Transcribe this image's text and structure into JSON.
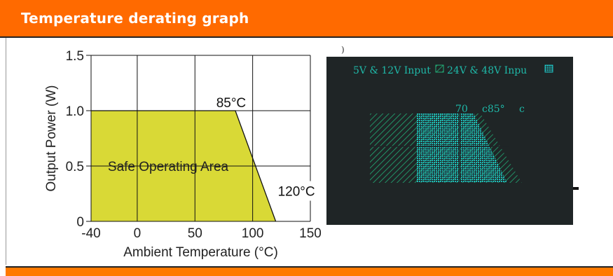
{
  "header": {
    "title": "Temperature derating graph"
  },
  "chart_data": [
    {
      "type": "area",
      "title": "",
      "xlabel": "Ambient Temperature (°C)",
      "ylabel": "Output Power (W)",
      "xlim": [
        -40,
        150
      ],
      "ylim": [
        0,
        1.5
      ],
      "xticks": [
        -40,
        0,
        50,
        100,
        150
      ],
      "xtick_labels": [
        "-40",
        "0",
        "50",
        "100",
        "150"
      ],
      "yticks": [
        0,
        0.5,
        1.0,
        1.5
      ],
      "ytick_labels": [
        "0",
        "0.5",
        "1.0",
        "1.5"
      ],
      "grid": true,
      "series": [
        {
          "x": [
            -40,
            85,
            120
          ],
          "y": [
            1.0,
            1.0,
            0
          ]
        }
      ],
      "annotations": [
        {
          "text": "85°C",
          "x": 85,
          "y": 1.0
        },
        {
          "text": "120°C",
          "x": 120,
          "y": 0.25
        },
        {
          "text": "Safe Operating Area",
          "x": -25,
          "y": 0.5
        }
      ],
      "colors": {
        "fill": "#d9d936",
        "line": "#111111",
        "grid": "#111111"
      }
    },
    {
      "type": "area",
      "title": "",
      "legend": [
        "5V & 12V Input",
        "24V & 48V Input"
      ],
      "legend_placement": "top",
      "annotations": [
        "70",
        "c85°",
        "c"
      ],
      "colors": {
        "background": "#1f2526",
        "hatch_a": "#22b37a",
        "hatch_b": "#1fb8b8",
        "text": "#1fb8a8"
      }
    }
  ],
  "right_panel": {
    "legend_a_text": "5V & 12V Input",
    "legend_b_text": "24V & 48V Inpu",
    "label_70": "70",
    "label_85": "c85°",
    "label_c": "c",
    "paren": ")"
  }
}
